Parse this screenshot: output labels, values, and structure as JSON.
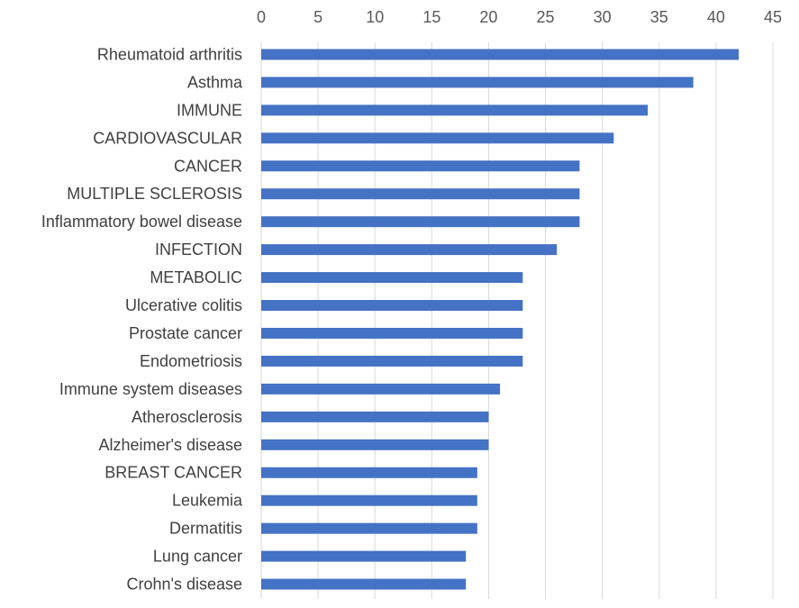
{
  "chart_data": {
    "type": "bar",
    "orientation": "horizontal",
    "title": "",
    "xlabel": "",
    "ylabel": "",
    "x_axis_position": "top",
    "xlim": [
      0,
      45
    ],
    "xticks": [
      0,
      5,
      10,
      15,
      20,
      25,
      30,
      35,
      40,
      45
    ],
    "grid": true,
    "legend": "none",
    "bar_color": "#4472c4",
    "categories": [
      "Rheumatoid arthritis",
      "Asthma",
      "IMMUNE",
      "CARDIOVASCULAR",
      "CANCER",
      "MULTIPLE SCLEROSIS",
      "Inflammatory bowel disease",
      "INFECTION",
      "METABOLIC",
      "Ulcerative colitis",
      "Prostate cancer",
      "Endometriosis",
      "Immune system diseases",
      "Atherosclerosis",
      "Alzheimer's disease",
      "BREAST CANCER",
      "Leukemia",
      "Dermatitis",
      "Lung cancer",
      "Crohn's disease"
    ],
    "values": [
      42,
      38,
      34,
      31,
      28,
      28,
      28,
      26,
      23,
      23,
      23,
      23,
      21,
      20,
      20,
      19,
      19,
      19,
      18,
      18
    ]
  }
}
